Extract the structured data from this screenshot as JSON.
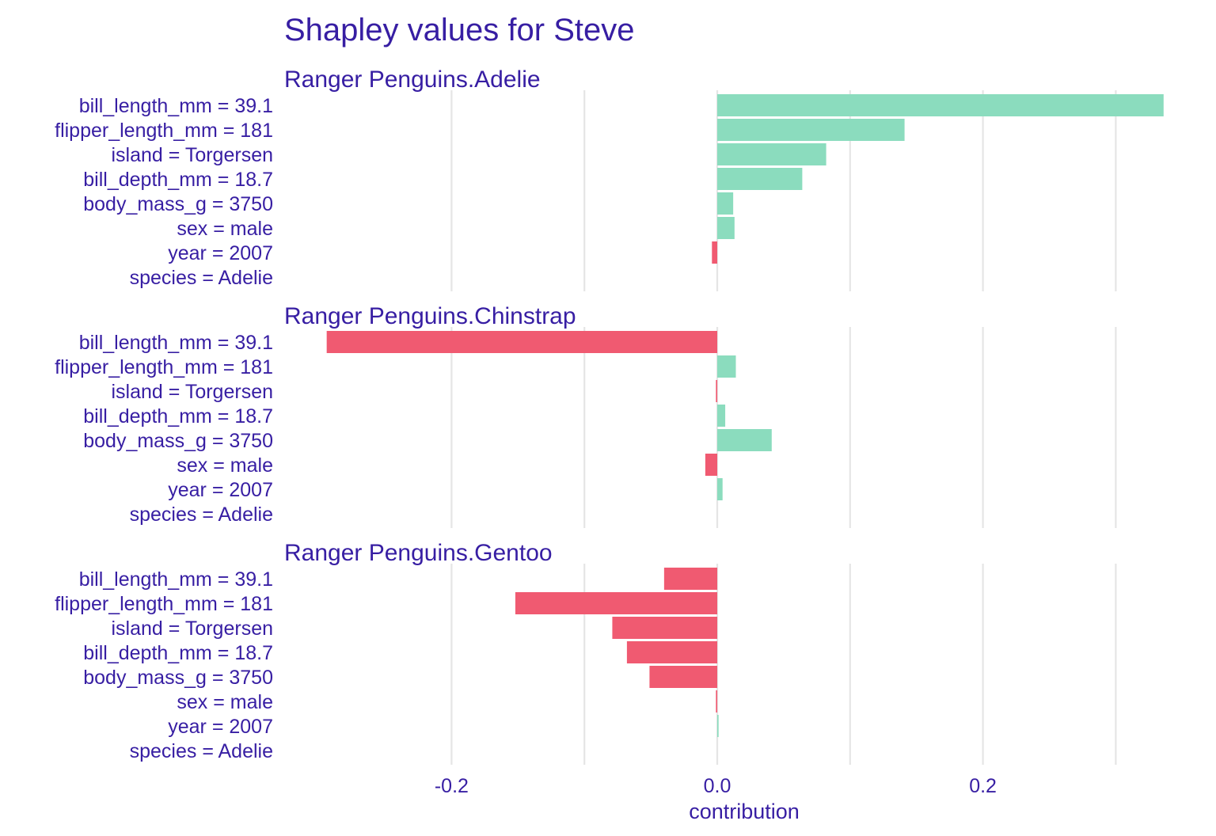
{
  "chart_data": {
    "type": "bar",
    "orientation": "horizontal",
    "title": "Shapley values for Steve",
    "xlabel": "contribution",
    "xlim": [
      -0.3,
      0.34
    ],
    "x_ticks": [
      -0.2,
      0.0,
      0.2
    ],
    "x_tick_labels": [
      "-0.2",
      "0.0",
      "0.2"
    ],
    "grid": true,
    "legend": "none",
    "colors": {
      "positive": "#8BDCBE",
      "negative": "#F05A71"
    },
    "categories": [
      "bill_length_mm = 39.1",
      "flipper_length_mm = 181",
      "island = Torgersen",
      "bill_depth_mm = 18.7",
      "body_mass_g = 3750",
      "sex = male",
      "year = 2007",
      "species = Adelie"
    ],
    "panels": [
      {
        "title": "Ranger Penguins.Adelie",
        "values": [
          0.336,
          0.141,
          0.082,
          0.064,
          0.012,
          0.013,
          -0.004,
          0.0
        ]
      },
      {
        "title": "Ranger Penguins.Chinstrap",
        "values": [
          -0.294,
          0.014,
          -0.001,
          0.006,
          0.041,
          -0.009,
          0.004,
          0.0
        ]
      },
      {
        "title": "Ranger Penguins.Gentoo",
        "values": [
          -0.04,
          -0.152,
          -0.079,
          -0.068,
          -0.051,
          -0.001,
          0.001,
          0.0
        ]
      }
    ]
  }
}
